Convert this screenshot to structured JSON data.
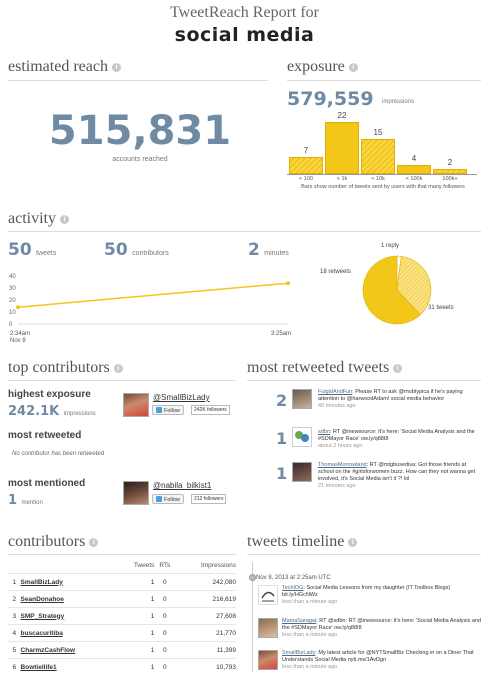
{
  "header": {
    "subtitle": "TweetReach Report for",
    "query": "social media"
  },
  "estimated_reach": {
    "title": "estimated reach",
    "value": "515,831",
    "caption": "accounts reached"
  },
  "exposure": {
    "title": "exposure",
    "value": "579,559",
    "caption": "impressions",
    "footnote": "Bars show number of tweets sent by users with that many followers",
    "colors": {
      "bar": "#f3c61a",
      "accent": "#6f8ba4"
    }
  },
  "chart_data": [
    {
      "type": "bar",
      "categories": [
        "< 100",
        "< 1k",
        "< 10k",
        "< 100k",
        "100k+"
      ],
      "values": [
        7,
        22,
        15,
        4,
        2
      ],
      "title": "",
      "xlabel": "",
      "ylabel": ""
    },
    {
      "type": "line",
      "x": [
        "2:34am Nov 8",
        "3:25am"
      ],
      "y": [
        14,
        34
      ],
      "yticks": [
        "40",
        "30",
        "20",
        "10",
        "0"
      ],
      "ylim": [
        0,
        40
      ]
    },
    {
      "type": "pie",
      "categories": [
        "1 reply",
        "18 retweets",
        "31 tweets"
      ],
      "values": [
        1,
        18,
        31
      ]
    }
  ],
  "activity": {
    "title": "activity",
    "tweets_value": "50",
    "tweets_label": "tweets",
    "contributors_value": "50",
    "contributors_label": "contributors",
    "minutes_value": "2",
    "minutes_label": "minutes",
    "x_start_label": "2:34am",
    "x_start_date": "Nov 8",
    "x_end_label": "3:25am",
    "pie_labels": {
      "replies": "1 reply",
      "retweets": "18 retweets",
      "tweets": "31 tweets"
    }
  },
  "top_contributors": {
    "title": "top contributors",
    "highest_exposure_label": "highest exposure",
    "highest_exposure_value": "242.1K",
    "highest_exposure_unit": "impressions",
    "highest_exposure_user": "@SmallBizLady",
    "highest_exposure_followers": "242K followers",
    "most_retweeted_label": "most retweeted",
    "most_retweeted_empty": "No contributor has been retweeted",
    "most_mentioned_label": "most mentioned",
    "most_mentioned_value": "1",
    "most_mentioned_unit": "mention",
    "most_mentioned_user": "@nabila_bilkist1",
    "most_mentioned_followers": "212 followers",
    "follow_label": "Follow"
  },
  "most_retweeted_tweets": {
    "title": "most retweeted tweets",
    "items": [
      {
        "rank": "2",
        "user": "FulgidAndFun",
        "text": ": Please RT to ask @mobtypica if he's paying attention to @harwoodAdam! social media behavior",
        "time": "40 minutes ago"
      },
      {
        "rank": "1",
        "user": "sdbn",
        "text": ": RT @inewsource: It's here: 'Social Media Analysis and the #SDMayor Race' ow.ly/q88I8",
        "time": "about 2 hours ago"
      },
      {
        "rank": "1",
        "user": "ThomasMorrowland",
        "text": ": RT @mtgbusediva: Got those friends at school on the #girlsforwomen buzz. How can they not wanna get involved, it's Social Media isn't it ?! lol",
        "time": "21 minutes ago"
      }
    ]
  },
  "contributors": {
    "title": "contributors",
    "columns": [
      "Tweets",
      "RTs",
      "Impressions"
    ],
    "rows": [
      {
        "n": "1",
        "name": "SmallBizLady",
        "tweets": "1",
        "rts": "0",
        "imp": "242,080"
      },
      {
        "n": "2",
        "name": "SeanDonahoe",
        "tweets": "1",
        "rts": "0",
        "imp": "216,619"
      },
      {
        "n": "3",
        "name": "SMP_Strategy",
        "tweets": "1",
        "rts": "0",
        "imp": "27,608"
      },
      {
        "n": "4",
        "name": "buscacuritiba",
        "tweets": "1",
        "rts": "0",
        "imp": "21,770"
      },
      {
        "n": "5",
        "name": "CharmzCashFlow",
        "tweets": "1",
        "rts": "0",
        "imp": "11,399"
      },
      {
        "n": "6",
        "name": "Bowtiellife1",
        "tweets": "1",
        "rts": "0",
        "imp": "10,793"
      }
    ]
  },
  "tweets_timeline": {
    "title": "tweets timeline",
    "date": "Nov 8, 2013 at 2:25am UTC",
    "items": [
      {
        "user": "TechIDG",
        "text": ": Social Media Lessons from my daughter (IT Toolbox Blogs) bit.ly/HGcNWz",
        "time": "less than a minute ago"
      },
      {
        "user": "MamaSaragai",
        "text": ": RT @sdbn: RT @inewsource: It's here: 'Social Media Analysis and the #SDMayor Race' ow.ly/q88I8",
        "time": "less than a minute ago"
      },
      {
        "user": "SmallBizLady",
        "text": ": My latest article for @NYTSmallBiz Checking in on a Diner That Understands Social Media nyti.ms/1AvDgn",
        "time": "less than a minute ago"
      }
    ]
  }
}
